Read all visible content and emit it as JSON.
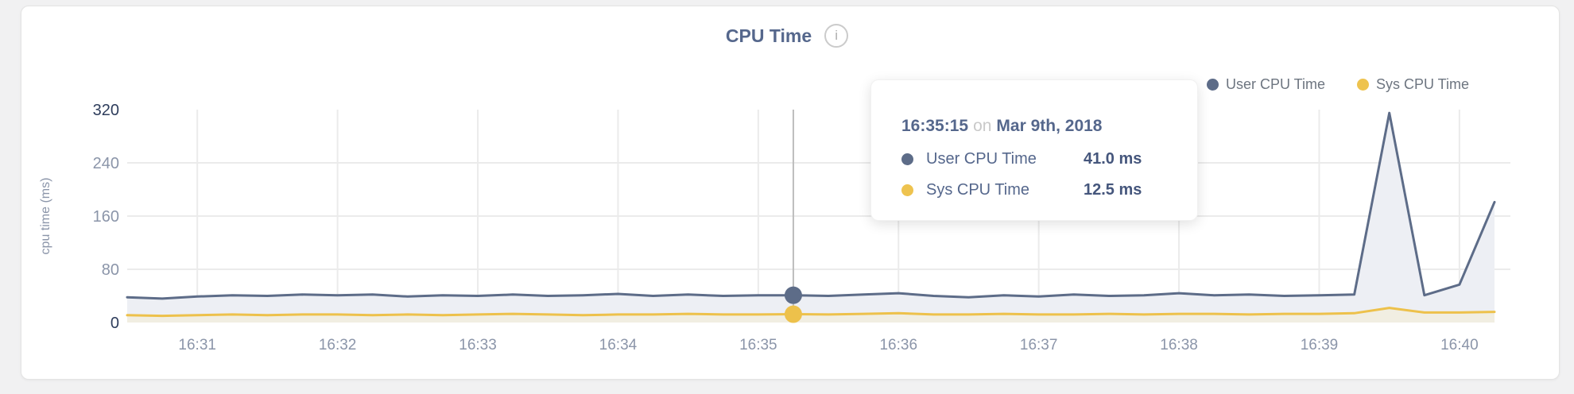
{
  "header": {
    "title": "CPU Time",
    "info_icon_glyph": "i"
  },
  "legend": {
    "items": [
      {
        "label": "User CPU Time",
        "color": "#5d6c88"
      },
      {
        "label": "Sys CPU Time",
        "color": "#eec34f"
      }
    ]
  },
  "tooltip": {
    "time": "16:35:15",
    "on_word": "on",
    "date": "Mar 9th, 2018",
    "rows": [
      {
        "label": "User CPU Time",
        "value": "41.0 ms",
        "color": "#5d6c88"
      },
      {
        "label": "Sys CPU Time",
        "value": "12.5 ms",
        "color": "#eec34f"
      }
    ]
  },
  "colors": {
    "page_background": "#f1f1f2",
    "card_background": "#ffffff",
    "title_text": "#55678c",
    "user_line": "#5d6c88",
    "user_fill": "#edeff4",
    "sys_line": "#edc14b",
    "sys_fill": "#f1eee2",
    "gridline": "#ebebeb",
    "crosshair": "#bdbdbd",
    "axis_tick_dark": "#2e3d5c",
    "axis_tick_light": "#8b95a9",
    "axis_title": "#8b95a9"
  },
  "chart_data": {
    "type": "area",
    "title": "CPU Time",
    "xlabel": "",
    "ylabel": "cpu time (ms)",
    "ylim": [
      0,
      320
    ],
    "y_ticks": [
      0,
      80,
      160,
      240,
      320
    ],
    "x_tick_labels": [
      "16:31",
      "16:32",
      "16:33",
      "16:34",
      "16:35",
      "16:36",
      "16:37",
      "16:38",
      "16:39",
      "16:40"
    ],
    "x_start": "16:30:30",
    "x_end": "16:40:15",
    "grid": true,
    "legend_position": "top-right",
    "times": [
      "16:30:30",
      "16:30:45",
      "16:31:00",
      "16:31:15",
      "16:31:30",
      "16:31:45",
      "16:32:00",
      "16:32:15",
      "16:32:30",
      "16:32:45",
      "16:33:00",
      "16:33:15",
      "16:33:30",
      "16:33:45",
      "16:34:00",
      "16:34:15",
      "16:34:30",
      "16:34:45",
      "16:35:00",
      "16:35:15",
      "16:35:30",
      "16:35:45",
      "16:36:00",
      "16:36:15",
      "16:36:30",
      "16:36:45",
      "16:37:00",
      "16:37:15",
      "16:37:30",
      "16:37:45",
      "16:38:00",
      "16:38:15",
      "16:38:30",
      "16:38:45",
      "16:39:00",
      "16:39:15",
      "16:39:30",
      "16:39:45",
      "16:40:00",
      "16:40:15"
    ],
    "series": [
      {
        "name": "User CPU Time",
        "unit": "ms",
        "color": "#5d6c88",
        "fill": "#edeff4",
        "values": [
          38,
          36,
          39,
          41,
          40,
          42,
          41,
          42,
          39,
          41,
          40,
          42,
          40,
          41,
          43,
          40,
          42,
          40,
          41,
          41,
          40,
          42,
          44,
          40,
          38,
          41,
          39,
          42,
          40,
          41,
          44,
          41,
          42,
          40,
          41,
          42,
          315,
          41,
          57,
          181
        ]
      },
      {
        "name": "Sys CPU Time",
        "unit": "ms",
        "color": "#edc14b",
        "fill": "#f1eee2",
        "values": [
          11,
          10,
          11,
          12,
          11,
          12,
          12,
          11,
          12,
          11,
          12,
          13,
          12,
          11,
          12,
          12,
          13,
          12,
          12,
          12.5,
          12,
          13,
          14,
          12,
          12,
          13,
          12,
          12,
          13,
          12,
          13,
          13,
          12,
          13,
          13,
          14,
          22,
          15,
          15,
          16
        ]
      }
    ],
    "hover": {
      "index": 19,
      "time": "16:35:15",
      "user_value_ms": 41.0,
      "sys_value_ms": 12.5
    }
  }
}
